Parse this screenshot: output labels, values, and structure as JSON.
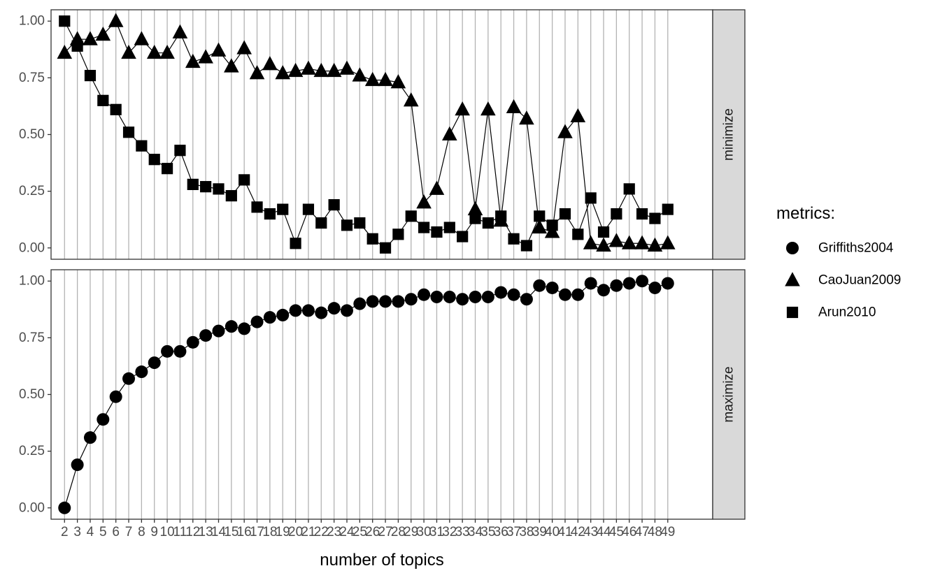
{
  "chart_data": {
    "type": "line",
    "xlabel": "number of topics",
    "legend": {
      "title": "metrics:",
      "position": "right"
    },
    "x": [
      2,
      3,
      4,
      5,
      6,
      7,
      8,
      9,
      10,
      11,
      12,
      13,
      14,
      15,
      16,
      17,
      18,
      19,
      20,
      21,
      22,
      23,
      24,
      25,
      26,
      27,
      28,
      29,
      30,
      31,
      32,
      33,
      34,
      35,
      36,
      37,
      38,
      39,
      40,
      41,
      42,
      43,
      44,
      45,
      46,
      47,
      48,
      49
    ],
    "x_tick_labels": [
      "2",
      "3",
      "4",
      "5",
      "6",
      "7",
      "8",
      "9",
      "10",
      "11",
      "12",
      "13",
      "14",
      "15",
      "16",
      "17",
      "18",
      "19",
      "20",
      "21",
      "22",
      "23",
      "24",
      "25",
      "26",
      "27",
      "28",
      "29",
      "30",
      "31",
      "32",
      "33",
      "34",
      "35",
      "36",
      "37",
      "38",
      "39",
      "40",
      "41",
      "42",
      "43",
      "44",
      "45",
      "46",
      "47",
      "48",
      "49"
    ],
    "y_tick_labels": [
      "0.00",
      "0.25",
      "0.50",
      "0.75",
      "1.00"
    ],
    "ylim": [
      0,
      1
    ],
    "grid": "vertical major lines only",
    "facets": [
      {
        "label": "minimize",
        "series": [
          {
            "name": "CaoJuan2009",
            "shape": "triangle",
            "values": [
              0.86,
              0.92,
              0.92,
              0.94,
              1.0,
              0.86,
              0.92,
              0.86,
              0.86,
              0.95,
              0.82,
              0.84,
              0.87,
              0.8,
              0.88,
              0.77,
              0.81,
              0.77,
              0.78,
              0.79,
              0.78,
              0.78,
              0.79,
              0.76,
              0.74,
              0.74,
              0.73,
              0.65,
              0.2,
              0.26,
              0.5,
              0.61,
              0.17,
              0.61,
              0.12,
              0.62,
              0.57,
              0.09,
              0.07,
              0.51,
              0.58,
              0.02,
              0.01,
              0.03,
              0.02,
              0.02,
              0.01,
              0.02
            ]
          },
          {
            "name": "Arun2010",
            "shape": "square",
            "values": [
              1.0,
              0.89,
              0.76,
              0.65,
              0.61,
              0.51,
              0.45,
              0.39,
              0.35,
              0.43,
              0.28,
              0.27,
              0.26,
              0.23,
              0.3,
              0.18,
              0.15,
              0.17,
              0.02,
              0.17,
              0.11,
              0.19,
              0.1,
              0.11,
              0.04,
              0.0,
              0.06,
              0.14,
              0.09,
              0.07,
              0.09,
              0.05,
              0.13,
              0.11,
              0.14,
              0.04,
              0.01,
              0.14,
              0.1,
              0.15,
              0.06,
              0.22,
              0.07,
              0.15,
              0.26,
              0.15,
              0.13,
              0.17
            ]
          }
        ]
      },
      {
        "label": "maximize",
        "series": [
          {
            "name": "Griffiths2004",
            "shape": "circle",
            "values": [
              0.0,
              0.19,
              0.31,
              0.39,
              0.49,
              0.57,
              0.6,
              0.64,
              0.69,
              0.69,
              0.73,
              0.76,
              0.78,
              0.8,
              0.79,
              0.82,
              0.84,
              0.85,
              0.87,
              0.87,
              0.86,
              0.88,
              0.87,
              0.9,
              0.91,
              0.91,
              0.91,
              0.92,
              0.94,
              0.93,
              0.93,
              0.92,
              0.93,
              0.93,
              0.95,
              0.94,
              0.92,
              0.98,
              0.97,
              0.94,
              0.94,
              0.99,
              0.96,
              0.98,
              0.99,
              1.0,
              0.97,
              0.99
            ]
          }
        ]
      }
    ],
    "legend_entries": [
      {
        "name": "Griffiths2004",
        "shape": "circle"
      },
      {
        "name": "CaoJuan2009",
        "shape": "triangle"
      },
      {
        "name": "Arun2010",
        "shape": "square"
      }
    ]
  }
}
